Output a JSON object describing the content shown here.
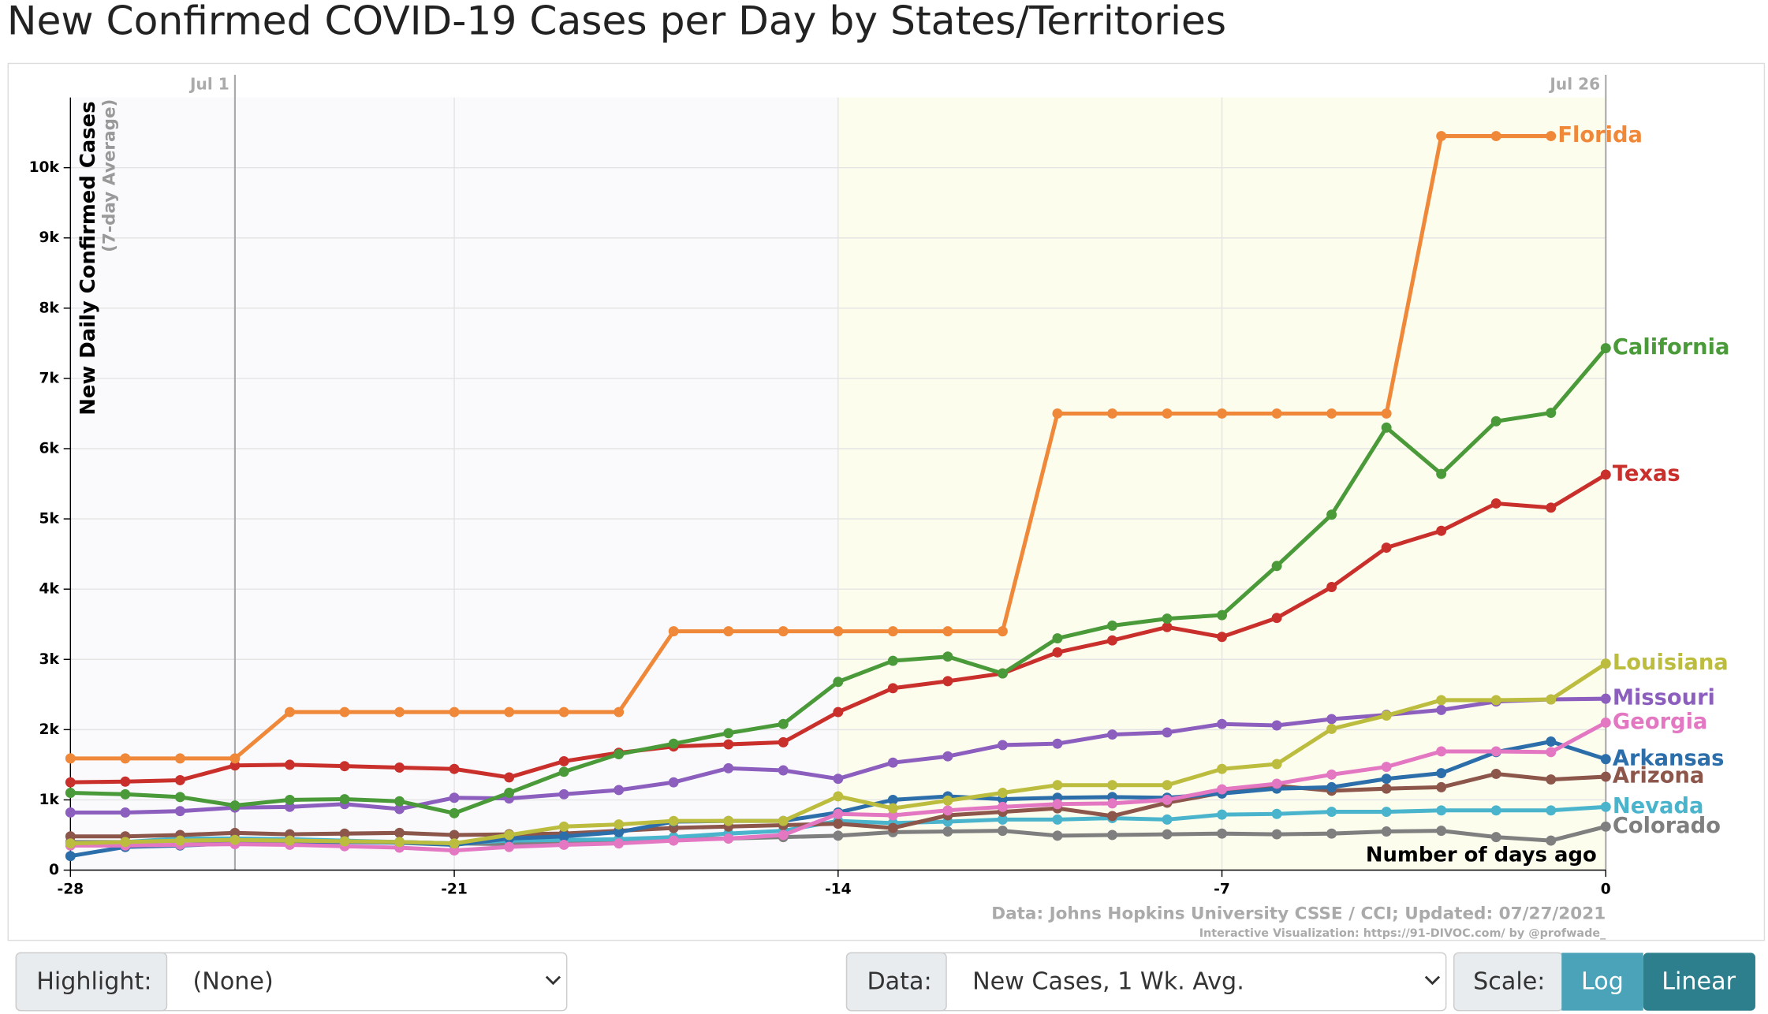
{
  "page_title": "New Confirmed COVID-19 Cases per Day by States/Territories",
  "chart_data": {
    "type": "line",
    "y_label": "New Daily Confirmed Cases",
    "y_sublabel": "(7-day Average)",
    "x_label": "Number of days ago",
    "source": "Data: Johns Hopkins University CSSE / CCI; Updated: 07/27/2021",
    "credit": "Interactive Visualization: https://91-DIVOC.com/ by @profwade_",
    "date_markers": [
      {
        "value": -25,
        "label": "Jul 1"
      },
      {
        "value": 0,
        "label": "Jul 26"
      }
    ],
    "highlight_range": [
      -14,
      0
    ],
    "x": [
      -28,
      -27,
      -26,
      -25,
      -24,
      -23,
      -22,
      -21,
      -20,
      -19,
      -18,
      -17,
      -16,
      -15,
      -14,
      -13,
      -12,
      -11,
      -10,
      -9,
      -8,
      -7,
      -6,
      -5,
      -4,
      -3,
      -2,
      -1,
      0
    ],
    "xlim": [
      -28,
      0
    ],
    "xticks": [
      -28,
      -21,
      -14,
      -7,
      0
    ],
    "ylim": [
      0,
      11000
    ],
    "yticks": [
      0,
      {
        "value": 1000,
        "label": "1k"
      },
      {
        "value": 2000,
        "label": "2k"
      },
      {
        "value": 3000,
        "label": "3k"
      },
      {
        "value": 4000,
        "label": "4k"
      },
      {
        "value": 5000,
        "label": "5k"
      },
      {
        "value": 6000,
        "label": "6k"
      },
      {
        "value": 7000,
        "label": "7k"
      },
      {
        "value": 8000,
        "label": "8k"
      },
      {
        "value": 9000,
        "label": "9k"
      },
      {
        "value": 10000,
        "label": "10k"
      }
    ],
    "grid": true,
    "series": [
      {
        "name": "Florida",
        "color": "#f0883a",
        "values": [
          1590,
          1590,
          1590,
          1590,
          2250,
          2250,
          2250,
          2250,
          2250,
          2250,
          2250,
          3400,
          3400,
          3400,
          3400,
          3400,
          3400,
          3400,
          6500,
          6500,
          6500,
          6500,
          6500,
          6500,
          6500,
          10450,
          10450,
          10450,
          null
        ]
      },
      {
        "name": "California",
        "color": "#4a9a3a",
        "values": [
          1100,
          1080,
          1040,
          920,
          1000,
          1010,
          980,
          810,
          1100,
          1400,
          1650,
          1800,
          1950,
          2080,
          2680,
          2980,
          3040,
          2800,
          3300,
          3480,
          3580,
          3630,
          4330,
          5060,
          6300,
          5640,
          6390,
          6510,
          7430
        ]
      },
      {
        "name": "Texas",
        "color": "#c9302c",
        "values": [
          1250,
          1260,
          1280,
          1490,
          1500,
          1480,
          1460,
          1440,
          1320,
          1550,
          1670,
          1760,
          1790,
          1820,
          2250,
          2590,
          2690,
          2800,
          3100,
          3270,
          3460,
          3320,
          3590,
          4030,
          4590,
          4830,
          5220,
          5160,
          5630
        ]
      },
      {
        "name": "Louisiana",
        "color": "#bcbd3f",
        "values": [
          380,
          400,
          420,
          430,
          420,
          410,
          400,
          380,
          500,
          620,
          650,
          700,
          700,
          700,
          1050,
          880,
          990,
          1100,
          1210,
          1210,
          1210,
          1440,
          1510,
          2010,
          2200,
          2420,
          2420,
          2430,
          2940
        ]
      },
      {
        "name": "Missouri",
        "color": "#8c5fbf",
        "values": [
          820,
          820,
          840,
          890,
          900,
          940,
          870,
          1030,
          1020,
          1080,
          1140,
          1250,
          1450,
          1420,
          1300,
          1530,
          1620,
          1780,
          1800,
          1930,
          1960,
          2080,
          2060,
          2150,
          2210,
          2280,
          2400,
          2430,
          2440
        ]
      },
      {
        "name": "Georgia",
        "color": "#e377c2",
        "values": [
          350,
          350,
          360,
          370,
          360,
          340,
          320,
          280,
          330,
          360,
          380,
          420,
          450,
          500,
          800,
          780,
          850,
          900,
          940,
          950,
          1000,
          1150,
          1230,
          1360,
          1470,
          1690,
          1690,
          1680,
          2100
        ]
      },
      {
        "name": "Arkansas",
        "color": "#2c6eaa",
        "values": [
          200,
          330,
          350,
          380,
          400,
          400,
          390,
          360,
          450,
          480,
          540,
          690,
          700,
          700,
          820,
          1000,
          1050,
          1010,
          1030,
          1040,
          1030,
          1090,
          1160,
          1180,
          1300,
          1380,
          1680,
          1830,
          1580
        ]
      },
      {
        "name": "Arizona",
        "color": "#8c564b",
        "values": [
          480,
          480,
          500,
          530,
          510,
          520,
          530,
          500,
          510,
          520,
          560,
          600,
          620,
          640,
          660,
          600,
          780,
          830,
          880,
          770,
          960,
          1100,
          1200,
          1130,
          1160,
          1180,
          1370,
          1290,
          1330
        ]
      },
      {
        "name": "Nevada",
        "color": "#4ab4cc",
        "values": [
          380,
          400,
          450,
          450,
          440,
          420,
          400,
          380,
          420,
          430,
          440,
          470,
          520,
          560,
          700,
          670,
          690,
          720,
          720,
          740,
          720,
          790,
          800,
          830,
          830,
          850,
          850,
          850,
          900
        ]
      },
      {
        "name": "Colorado",
        "color": "#7f7f7f",
        "values": [
          400,
          400,
          420,
          410,
          410,
          410,
          400,
          380,
          370,
          380,
          390,
          440,
          450,
          470,
          490,
          540,
          550,
          560,
          490,
          500,
          510,
          520,
          510,
          520,
          550,
          560,
          470,
          420,
          620
        ]
      }
    ]
  },
  "controls": {
    "highlight_label": "Highlight:",
    "highlight_value": "(None)",
    "data_label": "Data:",
    "data_value": "New Cases, 1 Wk. Avg.",
    "scale_label": "Scale:",
    "scale_options": [
      "Log",
      "Linear"
    ]
  }
}
